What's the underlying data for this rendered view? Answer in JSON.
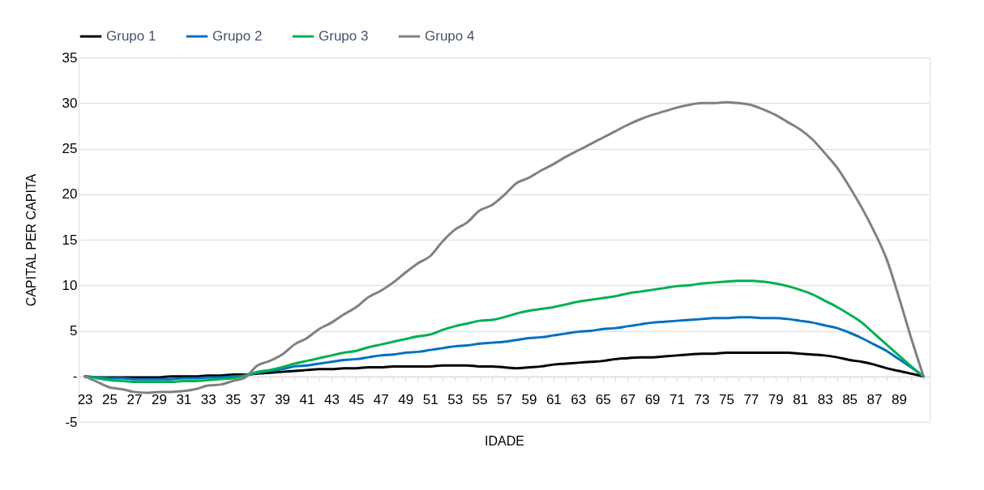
{
  "chart_data": {
    "type": "line",
    "xlabel": "IDADE",
    "ylabel": "CAPITAL PER CAPITA",
    "categories": [
      "23",
      null,
      "25",
      null,
      "27",
      null,
      "29",
      null,
      "31",
      null,
      "33",
      null,
      "35",
      null,
      "37",
      null,
      "39",
      null,
      "41",
      null,
      "43",
      null,
      "45",
      null,
      "47",
      null,
      "49",
      null,
      "51",
      null,
      "53",
      null,
      "55",
      null,
      "57",
      null,
      "59",
      null,
      "61",
      null,
      "63",
      null,
      "65",
      null,
      "67",
      null,
      "69",
      null,
      "71",
      null,
      "73",
      null,
      "75",
      null,
      "77",
      null,
      "79",
      null,
      "81",
      null,
      "83",
      null,
      "85",
      null,
      "87",
      null,
      "89",
      null,
      null
    ],
    "series": [
      {
        "name": "Grupo 1",
        "color": "#000000",
        "values": [
          0,
          -0.1,
          -0.1,
          -0.1,
          -0.1,
          -0.1,
          -0.1,
          0,
          0,
          0,
          0.1,
          0.1,
          0.2,
          0.2,
          0.3,
          0.4,
          0.5,
          0.6,
          0.7,
          0.8,
          0.8,
          0.9,
          0.9,
          1.0,
          1.0,
          1.1,
          1.1,
          1.1,
          1.1,
          1.2,
          1.2,
          1.2,
          1.1,
          1.1,
          1.0,
          0.9,
          1.0,
          1.1,
          1.3,
          1.4,
          1.5,
          1.6,
          1.7,
          1.9,
          2.0,
          2.1,
          2.1,
          2.2,
          2.3,
          2.4,
          2.5,
          2.5,
          2.6,
          2.6,
          2.6,
          2.6,
          2.6,
          2.6,
          2.5,
          2.4,
          2.3,
          2.1,
          1.8,
          1.6,
          1.3,
          0.9,
          0.6,
          0.3,
          0
        ]
      },
      {
        "name": "Grupo 2",
        "color": "#0070c0",
        "values": [
          0,
          -0.1,
          -0.2,
          -0.2,
          -0.3,
          -0.3,
          -0.3,
          -0.3,
          -0.2,
          -0.2,
          -0.1,
          -0.1,
          0,
          0.1,
          0.4,
          0.6,
          0.8,
          1.1,
          1.2,
          1.4,
          1.6,
          1.8,
          1.9,
          2.1,
          2.3,
          2.4,
          2.6,
          2.7,
          2.9,
          3.1,
          3.3,
          3.4,
          3.6,
          3.7,
          3.8,
          4.0,
          4.2,
          4.3,
          4.5,
          4.7,
          4.9,
          5.0,
          5.2,
          5.3,
          5.5,
          5.7,
          5.9,
          6.0,
          6.1,
          6.2,
          6.3,
          6.4,
          6.4,
          6.5,
          6.5,
          6.4,
          6.4,
          6.3,
          6.1,
          5.9,
          5.6,
          5.3,
          4.8,
          4.2,
          3.5,
          2.8,
          1.9,
          1.0,
          0
        ]
      },
      {
        "name": "Grupo 3",
        "color": "#00b050",
        "values": [
          0,
          -0.2,
          -0.4,
          -0.5,
          -0.6,
          -0.6,
          -0.6,
          -0.6,
          -0.5,
          -0.5,
          -0.4,
          -0.3,
          -0.2,
          0.1,
          0.5,
          0.7,
          1.0,
          1.4,
          1.7,
          2.0,
          2.3,
          2.6,
          2.8,
          3.2,
          3.5,
          3.8,
          4.1,
          4.4,
          4.6,
          5.1,
          5.5,
          5.8,
          6.1,
          6.2,
          6.5,
          6.9,
          7.2,
          7.4,
          7.6,
          7.9,
          8.2,
          8.4,
          8.6,
          8.8,
          9.1,
          9.3,
          9.5,
          9.7,
          9.9,
          10.0,
          10.2,
          10.3,
          10.4,
          10.5,
          10.5,
          10.4,
          10.2,
          9.9,
          9.5,
          9.0,
          8.3,
          7.6,
          6.8,
          5.9,
          4.7,
          3.5,
          2.3,
          1.1,
          0
        ]
      },
      {
        "name": "Grupo 4",
        "color": "#808080",
        "values": [
          0,
          -0.6,
          -1.2,
          -1.4,
          -1.7,
          -1.8,
          -1.7,
          -1.7,
          -1.6,
          -1.4,
          -1.0,
          -0.9,
          -0.5,
          -0.1,
          1.2,
          1.7,
          2.4,
          3.5,
          4.2,
          5.2,
          5.9,
          6.8,
          7.6,
          8.7,
          9.4,
          10.3,
          11.4,
          12.4,
          13.2,
          14.8,
          16.1,
          16.9,
          18.2,
          18.8,
          19.9,
          21.2,
          21.8,
          22.6,
          23.3,
          24.1,
          24.8,
          25.5,
          26.2,
          26.9,
          27.6,
          28.2,
          28.7,
          29.1,
          29.5,
          29.8,
          30.0,
          30.0,
          30.1,
          30.0,
          29.8,
          29.3,
          28.7,
          27.9,
          27.1,
          26.0,
          24.5,
          22.9,
          20.8,
          18.5,
          15.9,
          12.9,
          8.7,
          4.2,
          0
        ]
      }
    ],
    "ylim": [
      -5,
      35
    ],
    "yticks": [
      -5,
      {
        "value": 0,
        "label": "-"
      },
      5,
      10,
      15,
      20,
      25,
      30,
      35
    ],
    "grid": "y",
    "legend": "top"
  }
}
